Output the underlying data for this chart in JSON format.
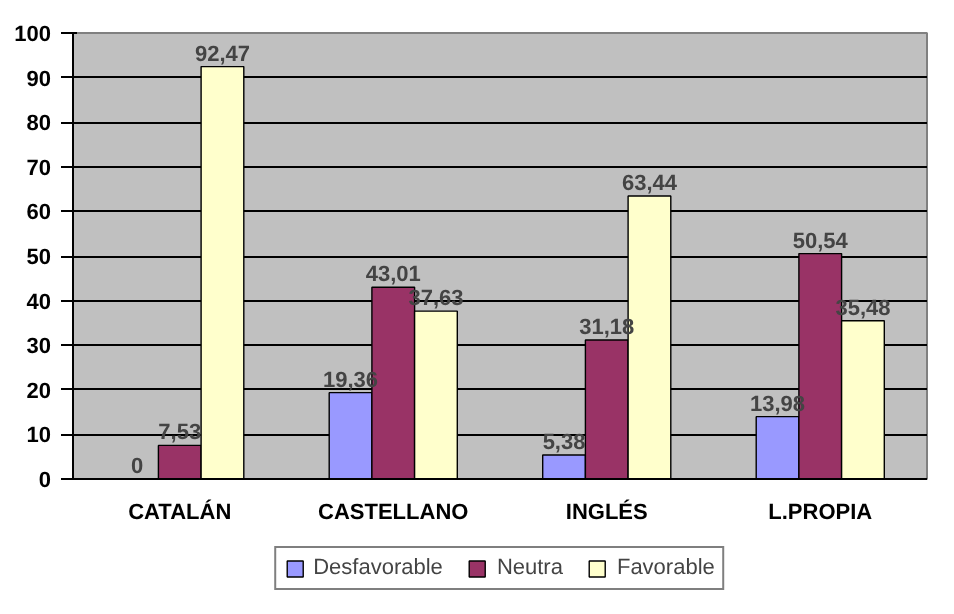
{
  "chart_data": {
    "type": "bar",
    "categories": [
      "CATALÁN",
      "CASTELLANO",
      "INGLÉS",
      "L.PROPIA"
    ],
    "series": [
      {
        "name": "Desfavorable",
        "color": "#9999ff",
        "values": [
          0,
          19.36,
          5.38,
          13.98
        ],
        "value_labels": [
          "0",
          "19,36",
          "5,38",
          "13,98"
        ]
      },
      {
        "name": "Neutra",
        "color": "#993366",
        "values": [
          7.53,
          43.01,
          31.18,
          50.54
        ],
        "value_labels": [
          "7,53",
          "43,01",
          "31,18",
          "50,54"
        ]
      },
      {
        "name": "Favorable",
        "color": "#ffffcc",
        "values": [
          92.47,
          37.63,
          63.44,
          35.48
        ],
        "value_labels": [
          "92,47",
          "37,63",
          "63,44",
          "35,48"
        ]
      }
    ],
    "ylim": [
      0,
      100
    ],
    "yticks": [
      0,
      10,
      20,
      30,
      40,
      50,
      60,
      70,
      80,
      90,
      100
    ],
    "grid": "y",
    "legend": "bottom"
  }
}
